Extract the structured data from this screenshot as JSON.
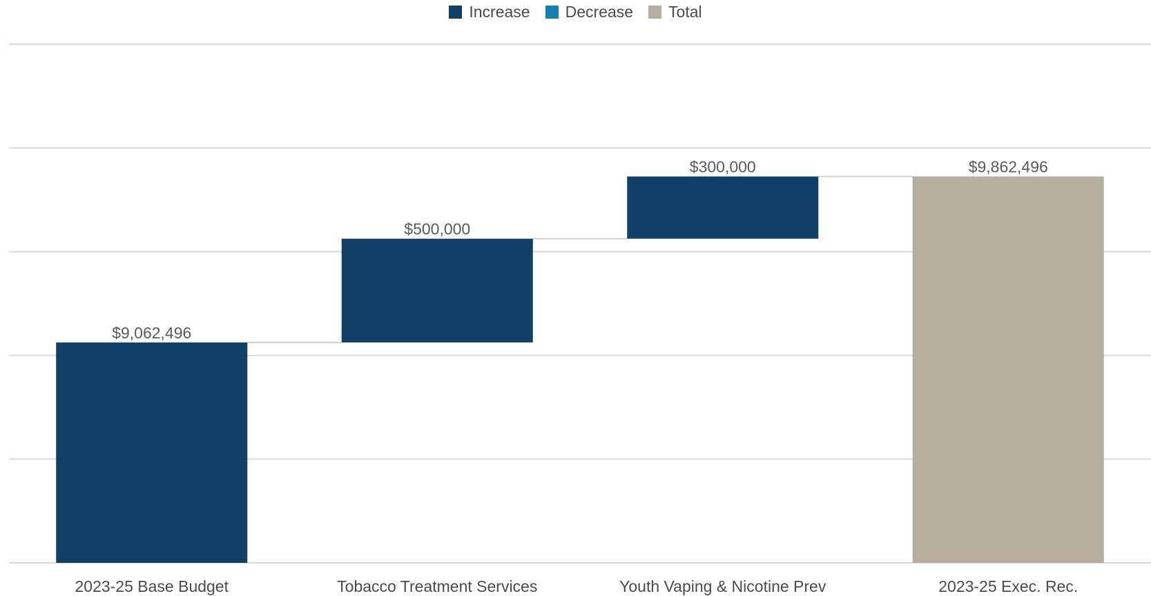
{
  "chart_data": {
    "type": "waterfall",
    "categories": [
      "2023-25 Base Budget",
      "Tobacco Treatment Services",
      "Youth Vaping & Nicotine Prev",
      "2023-25 Exec. Rec."
    ],
    "values": [
      9062496,
      500000,
      300000,
      9862496
    ],
    "kinds": [
      "increase",
      "increase",
      "increase",
      "total"
    ],
    "data_labels": [
      "$9,062,496",
      "$500,000",
      "$300,000",
      "$9,862,496"
    ],
    "legend": [
      {
        "label": "Increase",
        "color": "#113f66"
      },
      {
        "label": "Decrease",
        "color": "#1680b0"
      },
      {
        "label": "Total",
        "color": "#b5ae9f"
      }
    ],
    "title": "",
    "xlabel": "",
    "ylabel": "",
    "ylim": [
      8000000,
      10500000
    ],
    "grid": true,
    "legend_position": "top-center"
  }
}
